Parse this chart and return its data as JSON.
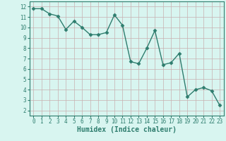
{
  "x": [
    0,
    1,
    2,
    3,
    4,
    5,
    6,
    7,
    8,
    9,
    10,
    11,
    12,
    13,
    14,
    15,
    16,
    17,
    18,
    19,
    20,
    21,
    22,
    23
  ],
  "y": [
    11.8,
    11.8,
    11.3,
    11.1,
    9.8,
    10.6,
    10.0,
    9.3,
    9.3,
    9.5,
    11.2,
    10.2,
    6.7,
    6.5,
    8.0,
    9.7,
    6.4,
    6.6,
    7.5,
    3.3,
    4.0,
    4.2,
    3.9,
    2.5
  ],
  "line_color": "#2e7d6e",
  "marker": "D",
  "markersize": 2.5,
  "linewidth": 1.0,
  "bg_color": "#d8f5f0",
  "grid_color": "#c8b0b0",
  "xlabel": "Humidex (Indice chaleur)",
  "xlabel_fontsize": 7,
  "ylim": [
    1.5,
    12.5
  ],
  "xlim": [
    -0.5,
    23.5
  ],
  "yticks": [
    2,
    3,
    4,
    5,
    6,
    7,
    8,
    9,
    10,
    11,
    12
  ],
  "xticks": [
    0,
    1,
    2,
    3,
    4,
    5,
    6,
    7,
    8,
    9,
    10,
    11,
    12,
    13,
    14,
    15,
    16,
    17,
    18,
    19,
    20,
    21,
    22,
    23
  ],
  "tick_fontsize": 5.5,
  "tick_color": "#2e7d6e",
  "spine_color": "#2e7d6e"
}
